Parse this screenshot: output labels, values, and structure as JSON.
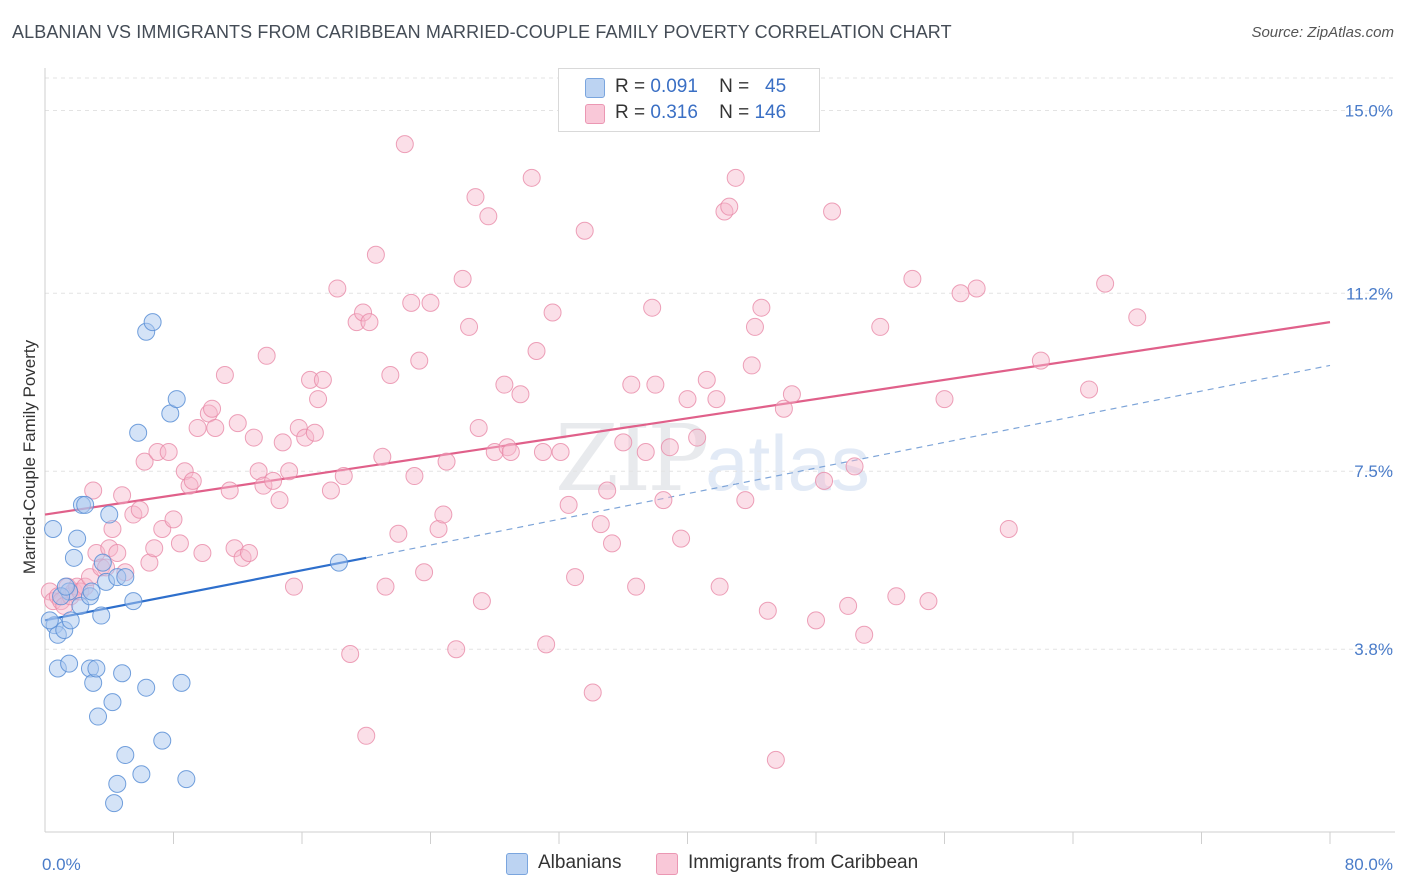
{
  "title": "ALBANIAN VS IMMIGRANTS FROM CARIBBEAN MARRIED-COUPLE FAMILY POVERTY CORRELATION CHART",
  "source": "Source: ZipAtlas.com",
  "watermark": {
    "zip": "ZIP",
    "atlas": "atlas"
  },
  "legend": {
    "rows": [
      {
        "r_label": "R =",
        "r_value": "0.091",
        "n_label": "N =",
        "n_value": "45"
      },
      {
        "r_label": "R =",
        "r_value": "0.316",
        "n_label": "N =",
        "n_value": "146"
      }
    ],
    "bottom": [
      "Albanians",
      "Immigrants from Caribbean"
    ]
  },
  "colors": {
    "albanian_fill": "#a9c8f0",
    "albanian_stroke": "#5b8fd6",
    "albanian_line": "#2e6fcc",
    "caribbean_fill": "#f6b9cc",
    "caribbean_stroke": "#e88aa8",
    "caribbean_line": "#e0608a",
    "tick_text": "#4a7cc9",
    "grid": "#e3e3e3"
  },
  "chart_data": {
    "type": "scatter",
    "title": "ALBANIAN VS IMMIGRANTS FROM CARIBBEAN MARRIED-COUPLE FAMILY POVERTY CORRELATION CHART",
    "xlabel": "",
    "ylabel": "Married-Couple Family Poverty",
    "xlim": [
      0,
      80
    ],
    "ylim": [
      0,
      15.8
    ],
    "x_tick_labels": [
      {
        "value": 0,
        "label": "0.0%"
      },
      {
        "value": 80,
        "label": "80.0%"
      }
    ],
    "x_minor_ticks": [
      8,
      16,
      24,
      32,
      40,
      48,
      56,
      64,
      72
    ],
    "y_ticks": [
      {
        "value": 3.8,
        "label": "3.8%"
      },
      {
        "value": 7.5,
        "label": "7.5%"
      },
      {
        "value": 11.2,
        "label": "11.2%"
      },
      {
        "value": 15.0,
        "label": "15.0%"
      }
    ],
    "series": [
      {
        "name": "Albanians",
        "R": 0.091,
        "N": 45,
        "trend": {
          "x0": 0,
          "y0": 4.4,
          "x1": 20,
          "y1": 5.7,
          "dashed_to_x": 80,
          "dashed_to_y": 9.7
        },
        "points": [
          [
            0.5,
            6.3
          ],
          [
            0.6,
            4.3
          ],
          [
            0.8,
            4.1
          ],
          [
            1.2,
            4.2
          ],
          [
            1.5,
            5.0
          ],
          [
            1.6,
            4.4
          ],
          [
            1.8,
            5.7
          ],
          [
            2.0,
            6.1
          ],
          [
            2.2,
            4.7
          ],
          [
            2.3,
            6.8
          ],
          [
            2.5,
            6.8
          ],
          [
            2.8,
            4.9
          ],
          [
            2.9,
            5.0
          ],
          [
            0.8,
            3.4
          ],
          [
            1.5,
            3.5
          ],
          [
            2.8,
            3.4
          ],
          [
            3.0,
            3.1
          ],
          [
            3.2,
            3.4
          ],
          [
            3.5,
            4.5
          ],
          [
            3.6,
            5.6
          ],
          [
            3.8,
            5.2
          ],
          [
            4.0,
            6.6
          ],
          [
            4.2,
            2.7
          ],
          [
            4.5,
            5.3
          ],
          [
            3.3,
            2.4
          ],
          [
            4.8,
            3.3
          ],
          [
            5.0,
            5.3
          ],
          [
            5.5,
            4.8
          ],
          [
            5.8,
            8.3
          ],
          [
            6.3,
            3.0
          ],
          [
            6.0,
            1.2
          ],
          [
            4.5,
            1.0
          ],
          [
            4.3,
            0.6
          ],
          [
            5.0,
            1.6
          ],
          [
            7.3,
            1.9
          ],
          [
            7.8,
            8.7
          ],
          [
            8.2,
            9.0
          ],
          [
            8.5,
            3.1
          ],
          [
            8.8,
            1.1
          ],
          [
            6.3,
            10.4
          ],
          [
            6.7,
            10.6
          ],
          [
            18.3,
            5.6
          ],
          [
            1.0,
            4.9
          ],
          [
            1.3,
            5.1
          ],
          [
            0.3,
            4.4
          ]
        ]
      },
      {
        "name": "Immigrants from Caribbean",
        "R": 0.316,
        "N": 146,
        "trend": {
          "x0": 0,
          "y0": 6.6,
          "x1": 80,
          "y1": 10.6
        },
        "points": [
          [
            0.3,
            5.0
          ],
          [
            0.5,
            4.8
          ],
          [
            0.8,
            4.9
          ],
          [
            1.0,
            4.8
          ],
          [
            1.2,
            4.7
          ],
          [
            1.4,
            5.1
          ],
          [
            1.6,
            4.9
          ],
          [
            1.8,
            5.0
          ],
          [
            2.0,
            5.1
          ],
          [
            2.2,
            5.0
          ],
          [
            2.5,
            5.1
          ],
          [
            2.8,
            5.3
          ],
          [
            3.0,
            7.1
          ],
          [
            3.2,
            5.8
          ],
          [
            3.5,
            5.5
          ],
          [
            3.8,
            5.5
          ],
          [
            4.0,
            5.9
          ],
          [
            4.2,
            6.3
          ],
          [
            4.5,
            5.8
          ],
          [
            4.8,
            7.0
          ],
          [
            5.0,
            5.4
          ],
          [
            5.5,
            6.6
          ],
          [
            5.9,
            6.7
          ],
          [
            6.2,
            7.7
          ],
          [
            6.5,
            5.6
          ],
          [
            6.8,
            5.9
          ],
          [
            7.0,
            7.9
          ],
          [
            7.3,
            6.3
          ],
          [
            7.7,
            7.9
          ],
          [
            8.0,
            6.5
          ],
          [
            8.4,
            6.0
          ],
          [
            8.7,
            7.5
          ],
          [
            9.0,
            7.2
          ],
          [
            9.2,
            7.3
          ],
          [
            9.5,
            8.4
          ],
          [
            9.8,
            5.8
          ],
          [
            10.2,
            8.7
          ],
          [
            10.4,
            8.8
          ],
          [
            10.6,
            8.4
          ],
          [
            11.2,
            9.5
          ],
          [
            11.5,
            7.1
          ],
          [
            11.8,
            5.9
          ],
          [
            12.0,
            8.5
          ],
          [
            12.3,
            5.7
          ],
          [
            12.7,
            5.8
          ],
          [
            13.0,
            8.2
          ],
          [
            13.3,
            7.5
          ],
          [
            13.6,
            7.2
          ],
          [
            13.8,
            9.9
          ],
          [
            14.2,
            7.3
          ],
          [
            14.6,
            6.9
          ],
          [
            14.8,
            8.1
          ],
          [
            15.2,
            7.5
          ],
          [
            15.5,
            5.1
          ],
          [
            15.8,
            8.4
          ],
          [
            16.2,
            8.2
          ],
          [
            16.5,
            9.4
          ],
          [
            16.8,
            8.3
          ],
          [
            17.0,
            9.0
          ],
          [
            17.3,
            9.4
          ],
          [
            17.8,
            7.1
          ],
          [
            18.2,
            11.3
          ],
          [
            18.6,
            7.4
          ],
          [
            19.0,
            3.7
          ],
          [
            19.4,
            10.6
          ],
          [
            19.8,
            10.8
          ],
          [
            20.2,
            10.6
          ],
          [
            20.6,
            12.0
          ],
          [
            21.0,
            7.8
          ],
          [
            21.2,
            5.1
          ],
          [
            21.5,
            9.5
          ],
          [
            22.0,
            6.2
          ],
          [
            22.4,
            14.3
          ],
          [
            22.8,
            11.0
          ],
          [
            23.0,
            7.4
          ],
          [
            23.3,
            9.8
          ],
          [
            23.6,
            5.4
          ],
          [
            24.0,
            11.0
          ],
          [
            24.5,
            6.3
          ],
          [
            24.8,
            6.6
          ],
          [
            25.0,
            7.7
          ],
          [
            25.6,
            3.8
          ],
          [
            26.0,
            11.5
          ],
          [
            26.4,
            10.5
          ],
          [
            26.8,
            13.2
          ],
          [
            27.0,
            8.4
          ],
          [
            27.2,
            4.8
          ],
          [
            27.6,
            12.8
          ],
          [
            28.0,
            7.9
          ],
          [
            28.6,
            9.3
          ],
          [
            28.8,
            8.0
          ],
          [
            29.0,
            7.9
          ],
          [
            29.6,
            9.1
          ],
          [
            30.3,
            13.6
          ],
          [
            30.6,
            10.0
          ],
          [
            31.0,
            7.9
          ],
          [
            31.2,
            3.9
          ],
          [
            31.6,
            10.8
          ],
          [
            32.1,
            7.9
          ],
          [
            32.6,
            6.8
          ],
          [
            33.0,
            5.3
          ],
          [
            33.6,
            12.5
          ],
          [
            34.1,
            2.9
          ],
          [
            34.6,
            6.4
          ],
          [
            35.0,
            7.1
          ],
          [
            35.3,
            6.0
          ],
          [
            36.0,
            8.1
          ],
          [
            36.5,
            9.3
          ],
          [
            36.8,
            5.1
          ],
          [
            37.4,
            7.9
          ],
          [
            37.8,
            10.9
          ],
          [
            38.0,
            9.3
          ],
          [
            38.5,
            6.9
          ],
          [
            38.9,
            8.0
          ],
          [
            39.6,
            6.1
          ],
          [
            40.0,
            9.0
          ],
          [
            40.6,
            8.2
          ],
          [
            41.2,
            9.4
          ],
          [
            41.8,
            9.0
          ],
          [
            42.0,
            5.1
          ],
          [
            42.3,
            12.9
          ],
          [
            42.6,
            13.0
          ],
          [
            43.0,
            13.6
          ],
          [
            43.6,
            6.9
          ],
          [
            44.0,
            9.7
          ],
          [
            44.2,
            10.5
          ],
          [
            44.6,
            10.9
          ],
          [
            45.0,
            4.6
          ],
          [
            45.5,
            1.5
          ],
          [
            46.0,
            8.8
          ],
          [
            46.5,
            9.1
          ],
          [
            48.0,
            4.4
          ],
          [
            48.5,
            7.3
          ],
          [
            49.0,
            12.9
          ],
          [
            50.0,
            4.7
          ],
          [
            50.4,
            7.6
          ],
          [
            51.0,
            4.1
          ],
          [
            52.0,
            10.5
          ],
          [
            53.0,
            4.9
          ],
          [
            54.0,
            11.5
          ],
          [
            55.0,
            4.8
          ],
          [
            56.0,
            9.0
          ],
          [
            57.0,
            11.2
          ],
          [
            58.0,
            11.3
          ],
          [
            60.0,
            6.3
          ],
          [
            62.0,
            9.8
          ],
          [
            65.0,
            9.2
          ],
          [
            66.0,
            11.4
          ],
          [
            68.0,
            10.7
          ],
          [
            20.0,
            2.0
          ]
        ]
      }
    ]
  }
}
